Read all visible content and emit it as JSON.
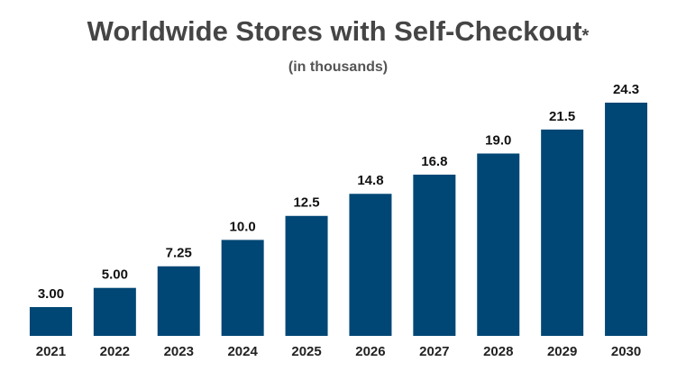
{
  "chart_data": {
    "type": "bar",
    "title": "Worldwide Stores with Self-Checkout",
    "title_mark": "*",
    "subtitle": "(in thousands)",
    "categories": [
      "2021",
      "2022",
      "2023",
      "2024",
      "2025",
      "2026",
      "2027",
      "2028",
      "2029",
      "2030"
    ],
    "values": [
      3,
      5,
      7.25,
      10,
      12.5,
      14.8,
      16.8,
      19,
      21.5,
      24.3
    ],
    "value_labels": [
      "3.00",
      "5.00",
      "7.25",
      "10.0",
      "12.5",
      "14.8",
      "16.8",
      "19.0",
      "21.5",
      "24.3"
    ],
    "color": "#004775"
  }
}
